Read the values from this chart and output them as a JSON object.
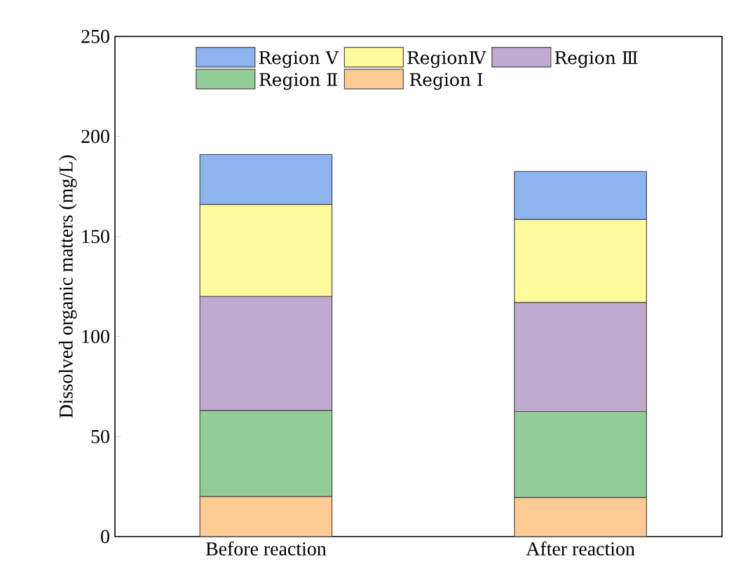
{
  "chart_data": {
    "type": "bar",
    "stacked": true,
    "ylabel": "Dissolved organic matters (mg/L)",
    "categories": [
      "Before reaction",
      "After reaction"
    ],
    "series": [
      {
        "name": "Region Ⅰ",
        "color": "#ffcb94",
        "values": [
          20,
          19.5
        ]
      },
      {
        "name": "Region Ⅱ",
        "color": "#92cc96",
        "values": [
          43,
          43
        ]
      },
      {
        "name": "Region Ⅲ",
        "color": "#bfaad0",
        "values": [
          57,
          54.5
        ]
      },
      {
        "name": "RegionⅣ",
        "color": "#fffa9b",
        "values": [
          46,
          41.5
        ]
      },
      {
        "name": "Region Ⅴ",
        "color": "#8db4ef",
        "values": [
          25,
          24
        ]
      }
    ],
    "ylim": [
      0,
      250
    ],
    "yticks": [
      0,
      50,
      100,
      150,
      200,
      250
    ],
    "legend": "top",
    "grid": false
  }
}
